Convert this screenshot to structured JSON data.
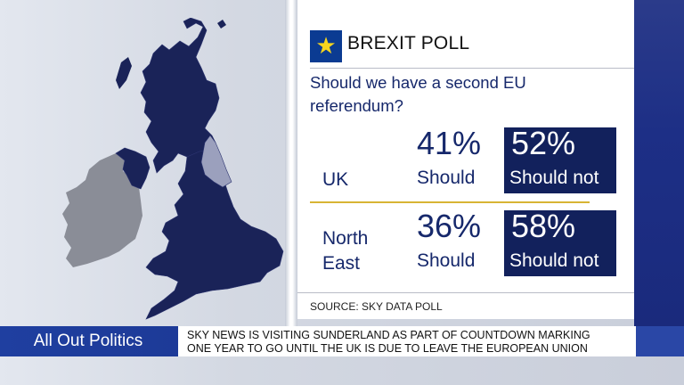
{
  "colors": {
    "panel_navy": "#12215c",
    "text_navy": "#16286b",
    "map_uk": "#1a2358",
    "map_north_east": "#9ba0bd",
    "map_ireland": "#8a8d97",
    "gold_rule": "#d8b434",
    "flag_blue": "#0b3b92",
    "flag_star": "#f7d51d",
    "banner_blue": "#1f3fa0"
  },
  "panel": {
    "flag_icon": "eu-flag-icon",
    "title": "BREXIT POLL",
    "question_line1": "Should we have a second EU",
    "question_line2": "referendum?",
    "rows": [
      {
        "label_line1": "UK",
        "label_line2": "",
        "should_pct": "41%",
        "should_label": "Should",
        "should_not_pct": "52%",
        "should_not_label": "Should not"
      },
      {
        "label_line1": "North",
        "label_line2": "East",
        "should_pct": "36%",
        "should_label": "Should",
        "should_not_pct": "58%",
        "should_not_label": "Should not"
      }
    ],
    "source": "SOURCE: SKY DATA POLL"
  },
  "map": {
    "highlighted_region": "north-east-england"
  },
  "lower_third": {
    "programme": "All Out Politics",
    "ticker_line1": "SKY NEWS IS VISITING SUNDERLAND AS PART OF COUNTDOWN MARKING",
    "ticker_line2": "ONE YEAR TO GO UNTIL THE UK IS DUE TO LEAVE THE EUROPEAN UNION"
  }
}
